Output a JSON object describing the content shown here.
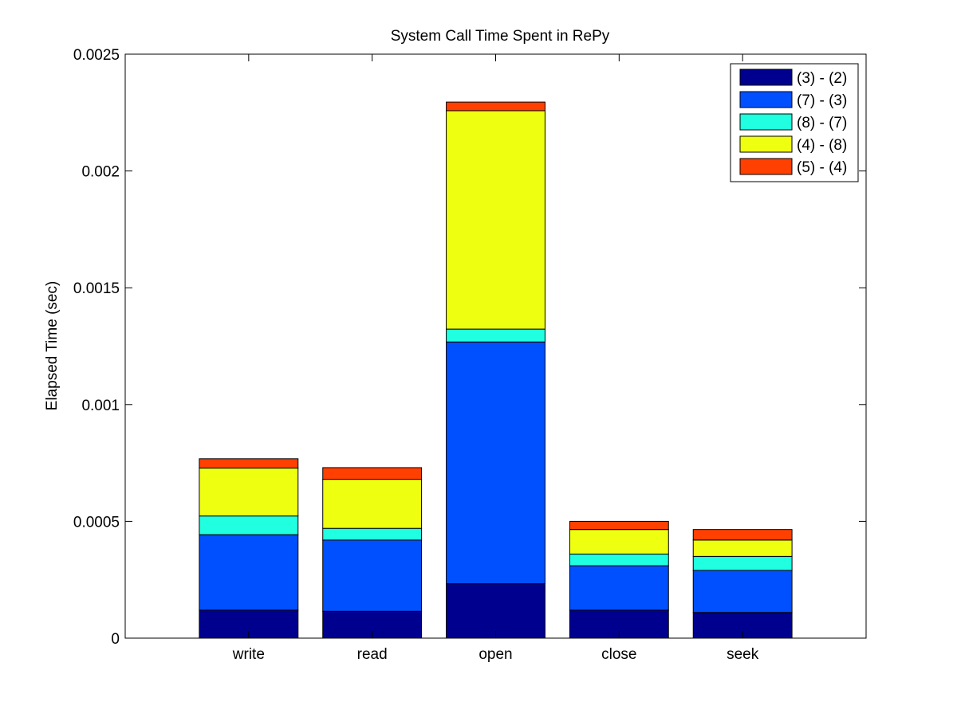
{
  "chart_data": {
    "type": "bar",
    "stacked": true,
    "title": "System Call Time Spent in RePy",
    "xlabel": "",
    "ylabel": "Elapsed Time (sec)",
    "categories": [
      "write",
      "read",
      "open",
      "close",
      "seek"
    ],
    "ylim": [
      0,
      0.0025
    ],
    "yticks": [
      0,
      0.0005,
      0.001,
      0.0015,
      0.002,
      0.0025
    ],
    "ytick_labels": [
      "0",
      "0.0005",
      "0.001",
      "0.0015",
      "0.002",
      "0.0025"
    ],
    "grid": false,
    "legend_position": "top-right",
    "series": [
      {
        "name": "(3) - (2)",
        "color": "#00008f",
        "values": [
          0.00012,
          0.000115,
          0.000233,
          0.00012,
          0.00011
        ]
      },
      {
        "name": "(7) - (3)",
        "color": "#0050ff",
        "values": [
          0.000323,
          0.000305,
          0.001035,
          0.00019,
          0.00018
        ]
      },
      {
        "name": "(8) - (7)",
        "color": "#20ffdf",
        "values": [
          8e-05,
          5e-05,
          5.5e-05,
          5e-05,
          6e-05
        ]
      },
      {
        "name": "(4) - (8)",
        "color": "#efff10",
        "values": [
          0.000205,
          0.00021,
          0.000935,
          0.000105,
          7e-05
        ]
      },
      {
        "name": "(5) - (4)",
        "color": "#ff4000",
        "values": [
          4e-05,
          5e-05,
          3.7e-05,
          3.5e-05,
          4.5e-05
        ]
      }
    ]
  }
}
